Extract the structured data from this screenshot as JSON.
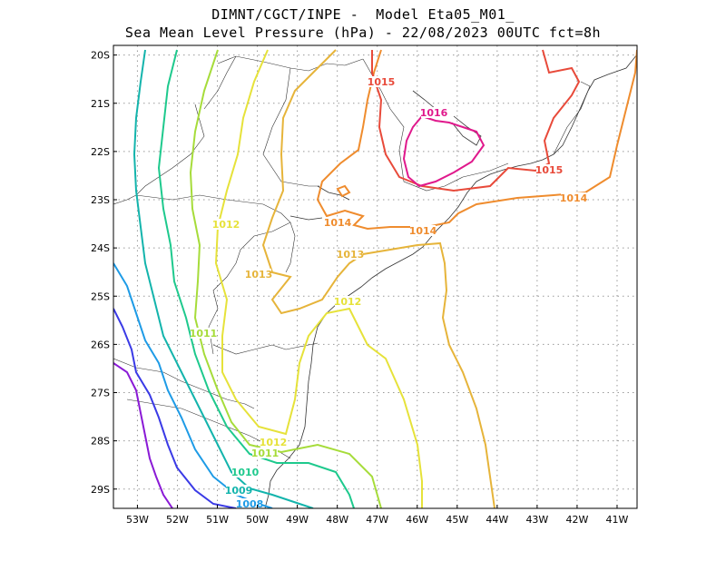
{
  "title": {
    "line1": "DIMNT/CGCT/INPE -  Model Eta05_M01_",
    "line2": "Sea Mean Level Pressure (hPa) - 22/08/2023 00UTC fct=8h"
  },
  "axes": {
    "lon_ticks": [
      "53W",
      "52W",
      "51W",
      "50W",
      "49W",
      "48W",
      "47W",
      "46W",
      "45W",
      "44W",
      "43W",
      "42W",
      "41W"
    ],
    "lat_ticks": [
      "20S",
      "21S",
      "22S",
      "23S",
      "24S",
      "25S",
      "26S",
      "27S",
      "28S",
      "29S"
    ]
  },
  "extent": {
    "lon": [
      -53.6,
      -40.5
    ],
    "lat": [
      -29.4,
      -19.8
    ]
  },
  "contours": [
    {
      "value": "1008",
      "color": "#1e9be6"
    },
    {
      "value": "1009",
      "color": "#13b4ac"
    },
    {
      "value": "1010",
      "color": "#1ec98d"
    },
    {
      "value": "1011",
      "color": "#a6dc3a"
    },
    {
      "value": "1012",
      "color": "#e6e23a"
    },
    {
      "value": "1013",
      "color": "#e6b43a"
    },
    {
      "value": "1014",
      "color": "#ef8c2e"
    },
    {
      "value": "1015",
      "color": "#e84a3a"
    },
    {
      "value": "1016",
      "color": "#e0198c"
    }
  ],
  "unlabeled_isobar_colors": [
    "#8a1ad6",
    "#3a3ae6",
    "#1e9be6",
    "#13b4ac",
    "#1ec98d"
  ]
}
